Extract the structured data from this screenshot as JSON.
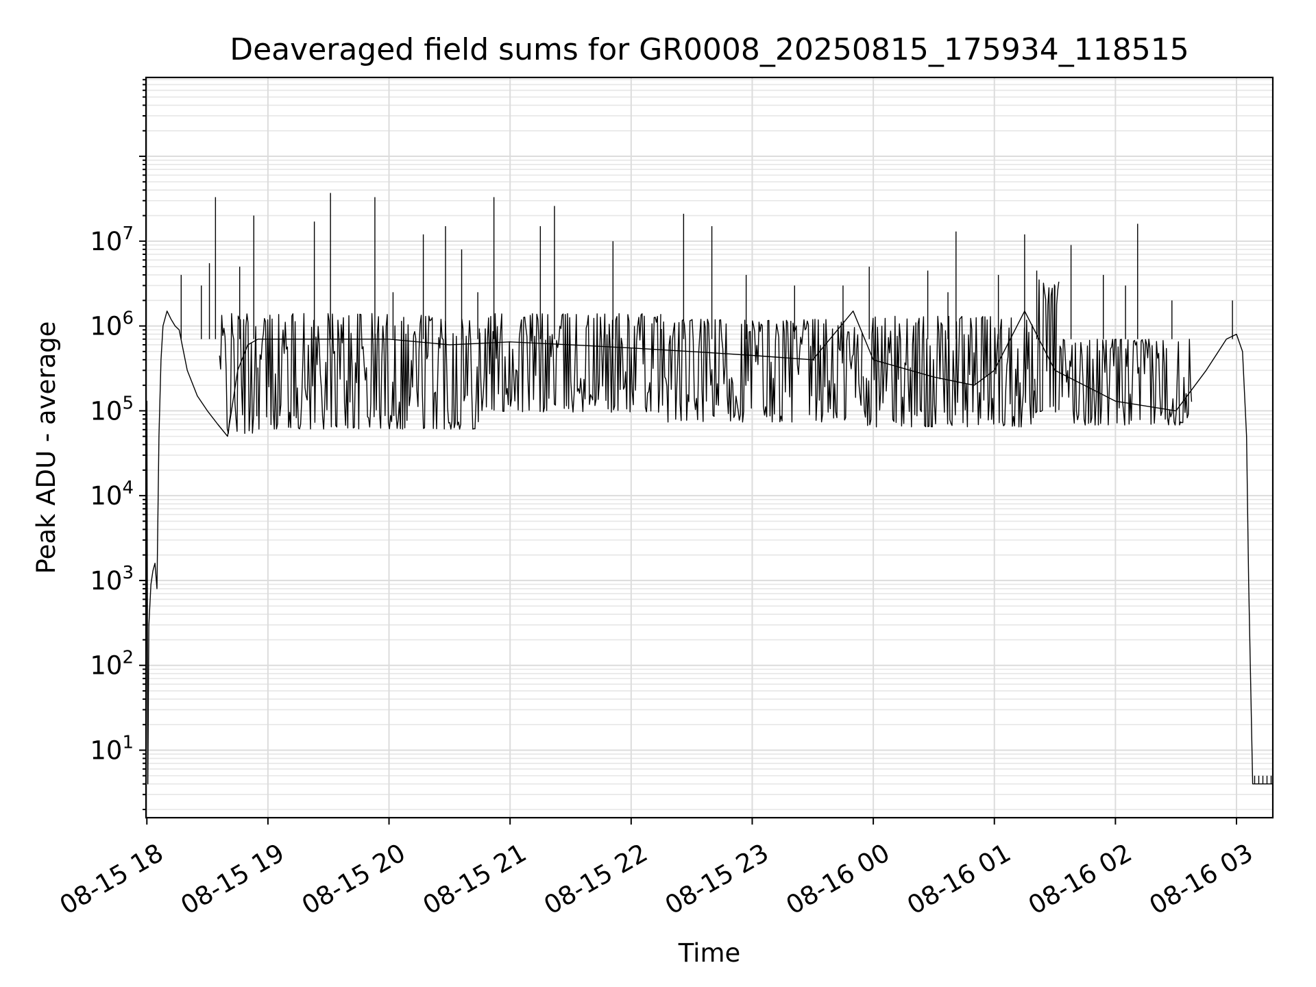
{
  "chart_data": {
    "type": "line",
    "title": "Deaveraged field sums for GR0008_20250815_175934_118515",
    "xlabel": "Time",
    "ylabel": "Peak ADU - average",
    "y_scale": "log",
    "ylim": [
      1.6,
      850000000
    ],
    "xlim": [
      "2025-08-15 17:59:34",
      "2025-08-16 03:18:00"
    ],
    "grid": "major and minor, both axes",
    "line_color": "#000000",
    "x_tick_labels": [
      "08-15 18",
      "08-15 19",
      "08-15 20",
      "08-15 21",
      "08-15 22",
      "08-15 23",
      "08-16 00",
      "08-16 01",
      "08-16 02",
      "08-16 03"
    ],
    "y_tick_labels": [
      {
        "base": "10",
        "exp": "1"
      },
      {
        "base": "10",
        "exp": "2"
      },
      {
        "base": "10",
        "exp": "3"
      },
      {
        "base": "10",
        "exp": "4"
      },
      {
        "base": "10",
        "exp": "5"
      },
      {
        "base": "10",
        "exp": "6"
      },
      {
        "base": "10",
        "exp": "7"
      }
    ],
    "series": [
      {
        "x": [
          "2025-08-15 17:59:34",
          "2025-08-15 18:00:00",
          "2025-08-15 18:00:30",
          "2025-08-15 18:01:00",
          "2025-08-15 18:02:00",
          "2025-08-15 18:03:00",
          "2025-08-15 18:04:00",
          "2025-08-15 18:05:00",
          "2025-08-15 18:06:00",
          "2025-08-15 18:07:00",
          "2025-08-15 18:08:00",
          "2025-08-15 18:10:00",
          "2025-08-15 18:12:00",
          "2025-08-15 18:14:00",
          "2025-08-15 18:16:00",
          "2025-08-15 18:20:00",
          "2025-08-15 18:25:00",
          "2025-08-15 18:30:00",
          "2025-08-15 18:35:00",
          "2025-08-15 18:40:00",
          "2025-08-15 18:45:00",
          "2025-08-15 18:50:00",
          "2025-08-15 18:55:00",
          "2025-08-15 19:00:00",
          "2025-08-15 19:30:00",
          "2025-08-15 20:00:00",
          "2025-08-15 20:30:00",
          "2025-08-15 21:00:00",
          "2025-08-15 21:30:00",
          "2025-08-15 22:00:00",
          "2025-08-15 22:30:00",
          "2025-08-15 23:00:00",
          "2025-08-15 23:30:00",
          "2025-08-15 23:50:00",
          "2025-08-16 00:00:00",
          "2025-08-16 00:30:00",
          "2025-08-16 00:50:00",
          "2025-08-16 01:00:00",
          "2025-08-16 01:15:00",
          "2025-08-16 01:30:00",
          "2025-08-16 02:00:00",
          "2025-08-16 02:30:00",
          "2025-08-16 02:45:00",
          "2025-08-16 02:55:00",
          "2025-08-16 03:00:00",
          "2025-08-16 03:03:00",
          "2025-08-16 03:05:00",
          "2025-08-16 03:06:00",
          "2025-08-16 03:08:00",
          "2025-08-16 03:18:00"
        ],
        "y": [
          2,
          130000,
          4,
          300,
          900,
          1300,
          1600,
          800,
          50000,
          400000,
          1000000,
          1500000,
          1200000,
          1000000,
          900000,
          300000,
          150000,
          100000,
          70000,
          50000,
          300000,
          600000,
          700000,
          700000,
          700000,
          700000,
          600000,
          650000,
          600000,
          550000,
          500000,
          450000,
          400000,
          1500000,
          400000,
          250000,
          200000,
          300000,
          1500000,
          300000,
          130000,
          100000,
          300000,
          700000,
          800000,
          500000,
          50000,
          1000,
          4,
          4
        ]
      }
    ],
    "spikes": [
      {
        "x": "2025-08-15 18:17:00",
        "y": 4000000
      },
      {
        "x": "2025-08-15 18:27:00",
        "y": 3000000
      },
      {
        "x": "2025-08-15 18:31:00",
        "y": 5500000
      },
      {
        "x": "2025-08-15 18:34:00",
        "y": 33000000
      },
      {
        "x": "2025-08-15 18:46:00",
        "y": 5000000
      },
      {
        "x": "2025-08-15 18:53:00",
        "y": 20000000
      },
      {
        "x": "2025-08-15 19:23:00",
        "y": 17000000
      },
      {
        "x": "2025-08-15 19:31:00",
        "y": 37000000
      },
      {
        "x": "2025-08-15 19:53:00",
        "y": 33000000
      },
      {
        "x": "2025-08-15 20:02:00",
        "y": 2500000
      },
      {
        "x": "2025-08-15 20:17:00",
        "y": 12000000
      },
      {
        "x": "2025-08-15 20:28:00",
        "y": 15000000
      },
      {
        "x": "2025-08-15 20:36:00",
        "y": 8000000
      },
      {
        "x": "2025-08-15 20:44:00",
        "y": 2500000
      },
      {
        "x": "2025-08-15 20:52:00",
        "y": 33000000
      },
      {
        "x": "2025-08-15 21:15:00",
        "y": 15000000
      },
      {
        "x": "2025-08-15 21:22:00",
        "y": 26000000
      },
      {
        "x": "2025-08-15 21:51:00",
        "y": 10000000
      },
      {
        "x": "2025-08-15 22:26:00",
        "y": 21000000
      },
      {
        "x": "2025-08-15 22:40:00",
        "y": 15000000
      },
      {
        "x": "2025-08-15 22:57:00",
        "y": 4000000
      },
      {
        "x": "2025-08-15 23:21:00",
        "y": 3000000
      },
      {
        "x": "2025-08-15 23:45:00",
        "y": 3000000
      },
      {
        "x": "2025-08-15 23:58:00",
        "y": 5000000
      },
      {
        "x": "2025-08-16 00:27:00",
        "y": 4500000
      },
      {
        "x": "2025-08-16 00:37:00",
        "y": 2500000
      },
      {
        "x": "2025-08-16 00:41:00",
        "y": 13000000
      },
      {
        "x": "2025-08-16 01:02:00",
        "y": 4000000
      },
      {
        "x": "2025-08-16 01:15:00",
        "y": 12000000
      },
      {
        "x": "2025-08-16 01:21:00",
        "y": 4500000
      },
      {
        "x": "2025-08-16 01:30:00",
        "y": 3000000
      },
      {
        "x": "2025-08-16 01:38:00",
        "y": 9000000
      },
      {
        "x": "2025-08-16 01:54:00",
        "y": 4000000
      },
      {
        "x": "2025-08-16 02:05:00",
        "y": 3000000
      },
      {
        "x": "2025-08-16 02:11:00",
        "y": 16000000
      },
      {
        "x": "2025-08-16 02:28:00",
        "y": 2000000
      },
      {
        "x": "2025-08-16 02:58:00",
        "y": 2000000
      }
    ],
    "noise_band": [
      {
        "x_start": "2025-08-15 18:36:00",
        "x_end": "2025-08-15 18:55:00",
        "low": 30000,
        "high": 1400000
      },
      {
        "x_start": "2025-08-15 18:55:00",
        "x_end": "2025-08-15 20:45:00",
        "low": 35000,
        "high": 1400000
      },
      {
        "x_start": "2025-08-15 20:45:00",
        "x_end": "2025-08-15 22:15:00",
        "low": 60000,
        "high": 1400000
      },
      {
        "x_start": "2025-08-15 22:15:00",
        "x_end": "2025-08-15 23:55:00",
        "low": 45000,
        "high": 1200000
      },
      {
        "x_start": "2025-08-15 23:55:00",
        "x_end": "2025-08-16 01:20:00",
        "low": 38000,
        "high": 1300000
      },
      {
        "x_start": "2025-08-16 01:20:00",
        "x_end": "2025-08-16 01:32:00",
        "low": 50000,
        "high": 3500000
      },
      {
        "x_start": "2025-08-16 01:32:00",
        "x_end": "2025-08-16 02:38:00",
        "low": 45000,
        "high": 700000
      }
    ]
  }
}
